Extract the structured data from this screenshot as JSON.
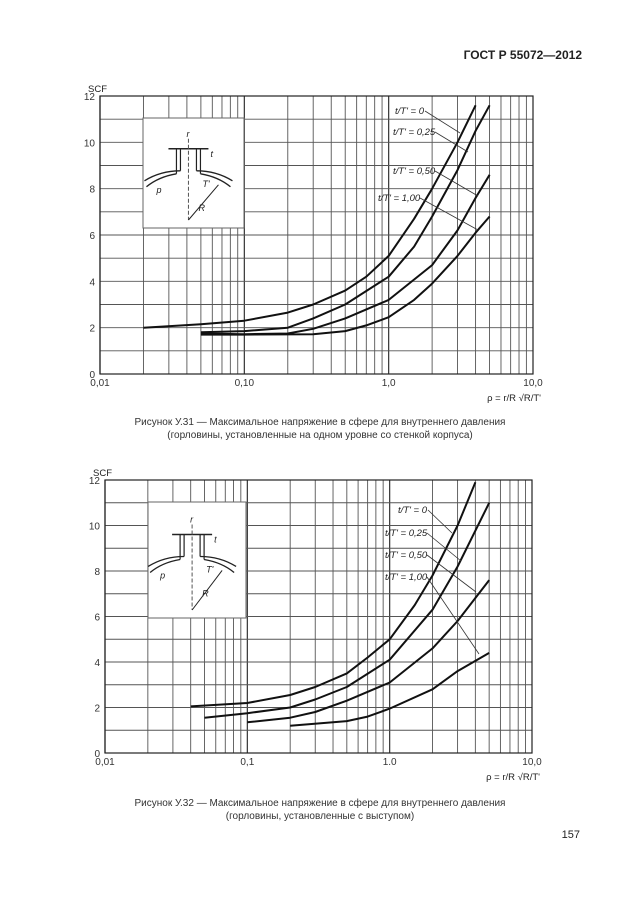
{
  "header": {
    "doc_id": "ГОСТ Р 55072—2012"
  },
  "page_number": "157",
  "figures": [
    {
      "caption_line1": "Рисунок У.31 — Максимальное напряжение в сфере для внутреннего давления",
      "caption_line2": "(горловины, установленные на одном уровне со стенкой корпуса)"
    },
    {
      "caption_line1": "Рисунок У.32 — Максимальное напряжение в сфере для внутреннего давления",
      "caption_line2": "(горловины, установленные с выступом)"
    }
  ],
  "diagram_labels": {
    "r": "r",
    "t": "t",
    "T": "T'",
    "R": "R",
    "p": "p"
  },
  "chart_data": [
    {
      "type": "line",
      "ylabel": "SCF",
      "xlabel": "ρ = r/R √R/T'",
      "xscale": "log",
      "xlim": [
        0.01,
        10
      ],
      "ylim": [
        0,
        12
      ],
      "grid": true,
      "xticks": [
        {
          "v": 0.01,
          "label": "0,01"
        },
        {
          "v": 0.1,
          "label": "0,10"
        },
        {
          "v": 1,
          "label": "1,0"
        },
        {
          "v": 10,
          "label": "10,0"
        }
      ],
      "yticks": [
        0,
        2,
        4,
        6,
        8,
        10,
        12
      ],
      "series": [
        {
          "name": "t/T' = 0",
          "points": [
            [
              0.02,
              2.0
            ],
            [
              0.05,
              2.15
            ],
            [
              0.1,
              2.3
            ],
            [
              0.2,
              2.65
            ],
            [
              0.3,
              3.0
            ],
            [
              0.5,
              3.6
            ],
            [
              0.7,
              4.2
            ],
            [
              1.0,
              5.1
            ],
            [
              1.5,
              6.7
            ],
            [
              2.0,
              8.0
            ],
            [
              3.0,
              10.0
            ],
            [
              4.0,
              11.6
            ]
          ]
        },
        {
          "name": "t/T' = 0,25",
          "points": [
            [
              0.05,
              1.8
            ],
            [
              0.1,
              1.85
            ],
            [
              0.2,
              2.0
            ],
            [
              0.3,
              2.4
            ],
            [
              0.5,
              3.0
            ],
            [
              1.0,
              4.2
            ],
            [
              1.5,
              5.5
            ],
            [
              2.0,
              6.8
            ],
            [
              3.0,
              8.8
            ],
            [
              4.0,
              10.5
            ],
            [
              5.0,
              11.6
            ]
          ]
        },
        {
          "name": "t/T' = 0,50",
          "points": [
            [
              0.05,
              1.75
            ],
            [
              0.1,
              1.72
            ],
            [
              0.2,
              1.75
            ],
            [
              0.3,
              1.95
            ],
            [
              0.5,
              2.4
            ],
            [
              1.0,
              3.2
            ],
            [
              2.0,
              4.7
            ],
            [
              3.0,
              6.2
            ],
            [
              4.0,
              7.6
            ],
            [
              5.0,
              8.6
            ]
          ]
        },
        {
          "name": "t/T' = 1,00",
          "points": [
            [
              0.05,
              1.7
            ],
            [
              0.1,
              1.7
            ],
            [
              0.3,
              1.72
            ],
            [
              0.5,
              1.85
            ],
            [
              0.7,
              2.1
            ],
            [
              1.0,
              2.45
            ],
            [
              1.5,
              3.2
            ],
            [
              2.0,
              3.9
            ],
            [
              3.0,
              5.1
            ],
            [
              4.0,
              6.1
            ],
            [
              5.0,
              6.8
            ]
          ]
        }
      ]
    },
    {
      "type": "line",
      "ylabel": "SCF",
      "xlabel": "ρ = r/R √R/T'",
      "xscale": "log",
      "xlim": [
        0.01,
        10
      ],
      "ylim": [
        0,
        12
      ],
      "grid": true,
      "xticks": [
        {
          "v": 0.01,
          "label": "0,01"
        },
        {
          "v": 0.1,
          "label": "0,1"
        },
        {
          "v": 1,
          "label": "1.0"
        },
        {
          "v": 10,
          "label": "10,0"
        }
      ],
      "yticks": [
        0,
        2,
        4,
        6,
        8,
        10,
        12
      ],
      "series": [
        {
          "name": "t/T' = 0",
          "points": [
            [
              0.04,
              2.05
            ],
            [
              0.1,
              2.2
            ],
            [
              0.2,
              2.55
            ],
            [
              0.3,
              2.9
            ],
            [
              0.5,
              3.5
            ],
            [
              0.7,
              4.2
            ],
            [
              1.0,
              5.0
            ],
            [
              1.5,
              6.5
            ],
            [
              2.0,
              7.8
            ],
            [
              3.0,
              10.0
            ],
            [
              4.0,
              11.9
            ]
          ]
        },
        {
          "name": "t/T' = 0,25",
          "points": [
            [
              0.05,
              1.55
            ],
            [
              0.1,
              1.75
            ],
            [
              0.2,
              2.0
            ],
            [
              0.3,
              2.35
            ],
            [
              0.5,
              2.9
            ],
            [
              1.0,
              4.1
            ],
            [
              2.0,
              6.3
            ],
            [
              3.0,
              8.2
            ],
            [
              5.0,
              11.0
            ]
          ]
        },
        {
          "name": "t/T' = 0,50",
          "points": [
            [
              0.1,
              1.35
            ],
            [
              0.2,
              1.55
            ],
            [
              0.3,
              1.8
            ],
            [
              0.5,
              2.3
            ],
            [
              1.0,
              3.1
            ],
            [
              2.0,
              4.6
            ],
            [
              3.0,
              5.8
            ],
            [
              5.0,
              7.6
            ]
          ]
        },
        {
          "name": "t/T' = 1,00",
          "points": [
            [
              0.2,
              1.2
            ],
            [
              0.5,
              1.4
            ],
            [
              0.7,
              1.6
            ],
            [
              1.0,
              1.95
            ],
            [
              2.0,
              2.8
            ],
            [
              3.0,
              3.6
            ],
            [
              5.0,
              4.4
            ]
          ]
        }
      ]
    }
  ]
}
